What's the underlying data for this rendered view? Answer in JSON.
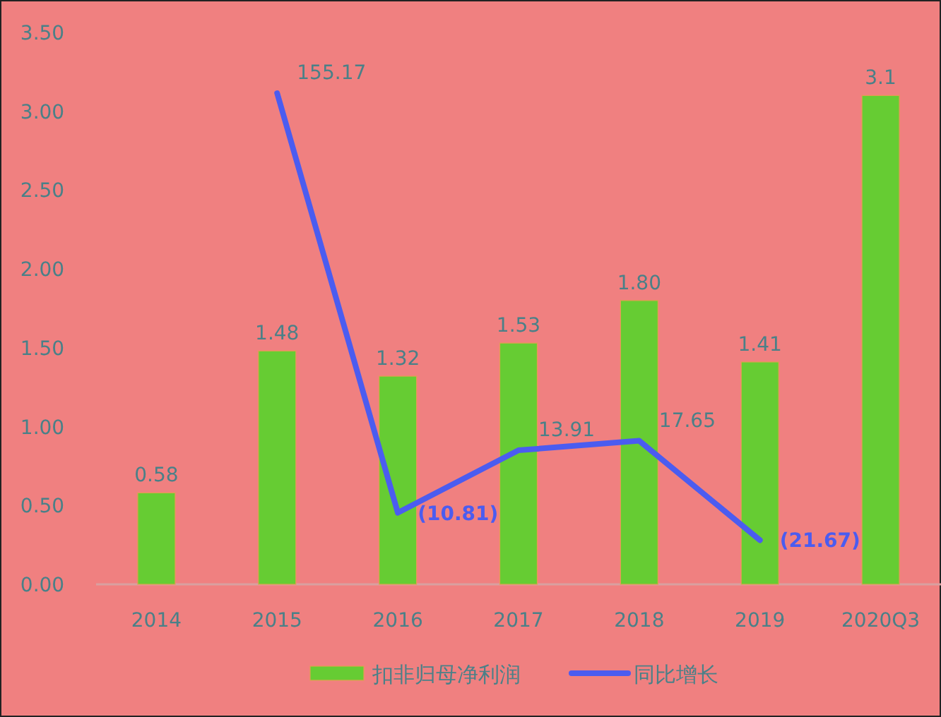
{
  "chart_data": {
    "type": "bar",
    "categories": [
      "2014",
      "2015",
      "2016",
      "2017",
      "2018",
      "2019",
      "2020Q3"
    ],
    "series": [
      {
        "name": "扣非归母净利润",
        "color": "#66cc33",
        "values": [
          0.58,
          1.48,
          1.32,
          1.53,
          1.8,
          1.41,
          3.1
        ],
        "value_labels": [
          "0.58",
          "1.48",
          "1.32",
          "1.53",
          "1.80",
          "1.41",
          "3.1"
        ]
      },
      {
        "name": "同比增长",
        "type": "line",
        "axis": "y2",
        "color": "#4b5cf0",
        "values": [
          null,
          155.17,
          -10.81,
          13.91,
          17.65,
          -21.67,
          null
        ],
        "value_labels": [
          null,
          "155.17",
          "(10.81)",
          "13.91",
          "17.65",
          "(21.67)",
          null
        ]
      }
    ],
    "ylim": [
      0,
      3.5
    ],
    "yticks": [
      {
        "value": 0,
        "label": "0.00"
      },
      {
        "value": 0.5,
        "label": "0.50"
      },
      {
        "value": 1,
        "label": "1.00"
      },
      {
        "value": 1.5,
        "label": "1.50"
      },
      {
        "value": 2,
        "label": "2.00"
      },
      {
        "value": 2.5,
        "label": "2.50"
      },
      {
        "value": 3,
        "label": "3.00"
      },
      {
        "value": 3.5,
        "label": "3.50"
      }
    ],
    "tick_labels": "xy",
    "grid": false,
    "legend": "bottom"
  }
}
